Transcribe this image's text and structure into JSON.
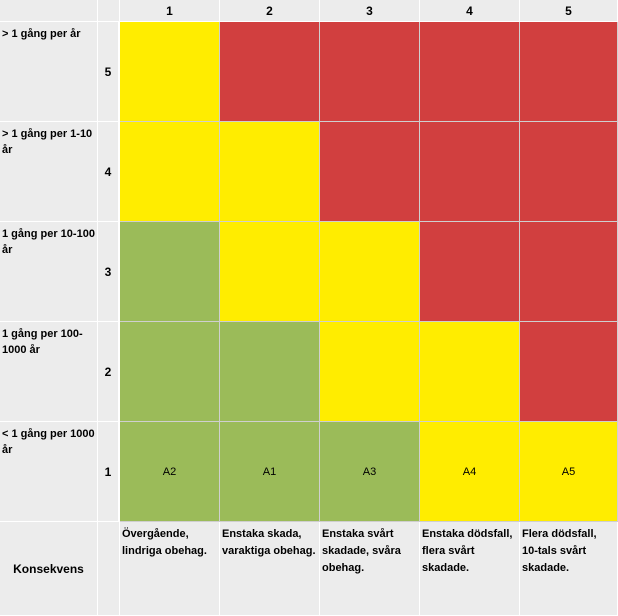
{
  "columns": [
    "1",
    "2",
    "3",
    "4",
    "5"
  ],
  "rows": [
    {
      "label": "> 1 gång per år",
      "num": "5",
      "cells": [
        {
          "level": "yellow",
          "text": ""
        },
        {
          "level": "red",
          "text": ""
        },
        {
          "level": "red",
          "text": ""
        },
        {
          "level": "red",
          "text": ""
        },
        {
          "level": "red",
          "text": ""
        }
      ]
    },
    {
      "label": "> 1 gång per 1-10 år",
      "num": "4",
      "cells": [
        {
          "level": "yellow",
          "text": ""
        },
        {
          "level": "yellow",
          "text": ""
        },
        {
          "level": "red",
          "text": ""
        },
        {
          "level": "red",
          "text": ""
        },
        {
          "level": "red",
          "text": ""
        }
      ]
    },
    {
      "label": "1 gång per 10-100 år",
      "num": "3",
      "cells": [
        {
          "level": "green",
          "text": ""
        },
        {
          "level": "yellow",
          "text": ""
        },
        {
          "level": "yellow",
          "text": ""
        },
        {
          "level": "red",
          "text": ""
        },
        {
          "level": "red",
          "text": ""
        }
      ]
    },
    {
      "label": "1 gång per 100-1000 år",
      "num": "2",
      "cells": [
        {
          "level": "green",
          "text": ""
        },
        {
          "level": "green",
          "text": ""
        },
        {
          "level": "yellow",
          "text": ""
        },
        {
          "level": "yellow",
          "text": ""
        },
        {
          "level": "red",
          "text": ""
        }
      ]
    },
    {
      "label": "< 1 gång per 1000 år",
      "num": "1",
      "cells": [
        {
          "level": "green",
          "text": "A2"
        },
        {
          "level": "green",
          "text": "A1"
        },
        {
          "level": "green",
          "text": "A3"
        },
        {
          "level": "yellow",
          "text": "A4"
        },
        {
          "level": "yellow",
          "text": "A5"
        }
      ]
    }
  ],
  "consequence": {
    "title": "Konsekvens",
    "descriptions": [
      "Övergående, lindriga obehag.",
      "Enstaka skada, varaktiga obehag.",
      "Enstaka svårt skadade, svåra obehag.",
      "Enstaka dödsfall, flera svårt skadade.",
      "Flera dödsfall, 10-tals svårt skadade."
    ]
  },
  "colors": {
    "green": "#9bbb59",
    "yellow": "#ffed00",
    "red": "#d13f3f"
  }
}
